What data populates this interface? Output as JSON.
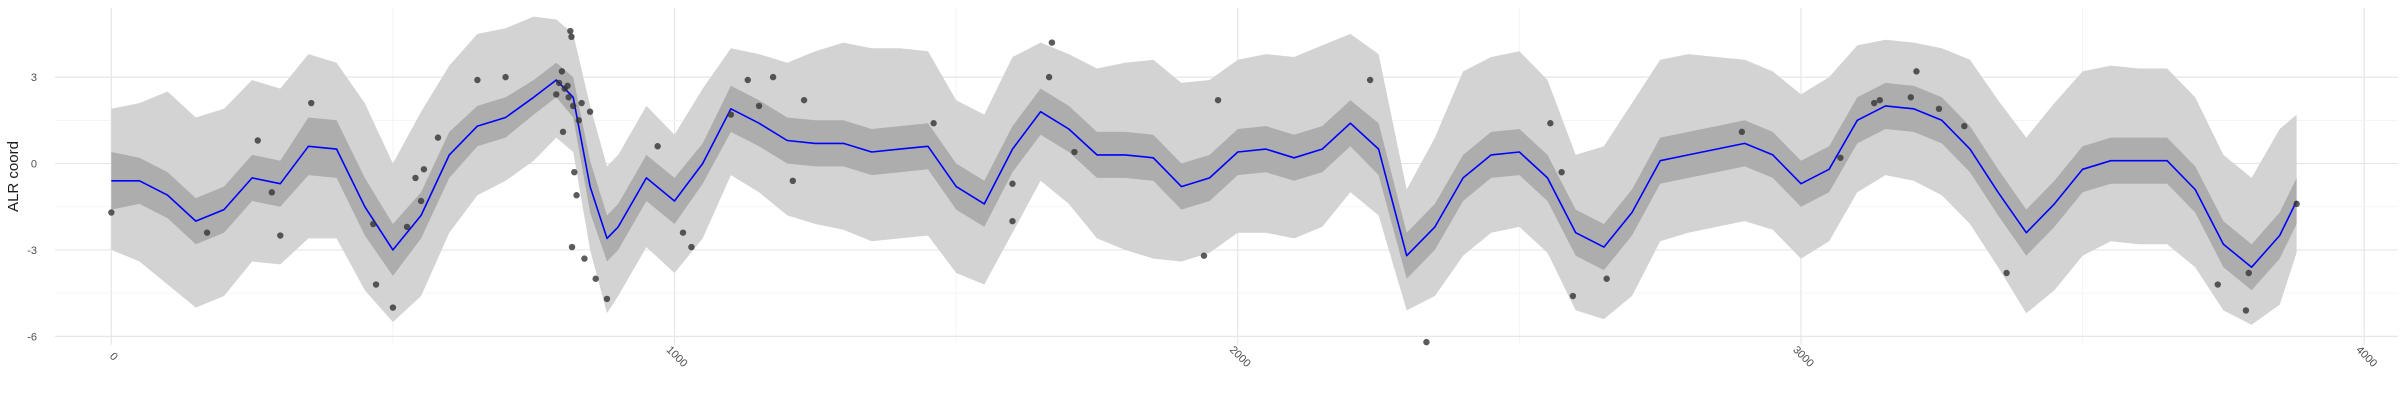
{
  "chart_data": {
    "type": "line",
    "title": "",
    "xlabel": "",
    "ylabel": "ALR coord",
    "xlim": [
      -100,
      4060
    ],
    "ylim": [
      -6.3,
      5.4
    ],
    "x_ticks": [
      0,
      1000,
      2000,
      3000,
      4000
    ],
    "x_tick_labels": [
      "0",
      "1000",
      "2000",
      "3000",
      "4000"
    ],
    "y_ticks": [
      -6,
      -3,
      0,
      3
    ],
    "y_tick_labels": [
      "-6",
      "-3",
      "0",
      "3"
    ],
    "grid": true,
    "colors": {
      "mean_line": "#0000ff",
      "inner_band": "#adadad",
      "outer_band": "#d3d3d3",
      "points": "#333333"
    },
    "series": [
      {
        "kind": "mean",
        "x": [
          0,
          50,
          100,
          150,
          200,
          250,
          300,
          350,
          400,
          450,
          500,
          550,
          600,
          650,
          700,
          750,
          790,
          820,
          850,
          880,
          900,
          950,
          1000,
          1050,
          1100,
          1150,
          1200,
          1250,
          1300,
          1350,
          1400,
          1450,
          1500,
          1550,
          1600,
          1650,
          1700,
          1750,
          1800,
          1850,
          1900,
          1950,
          2000,
          2050,
          2100,
          2150,
          2200,
          2250,
          2300,
          2350,
          2400,
          2450,
          2500,
          2550,
          2600,
          2650,
          2700,
          2750,
          2800,
          2850,
          2900,
          2950,
          3000,
          3050,
          3100,
          3150,
          3200,
          3250,
          3300,
          3350,
          3400,
          3450,
          3500,
          3550,
          3600,
          3650,
          3700,
          3750,
          3800,
          3850,
          3880
        ],
        "y": [
          -0.6,
          -0.6,
          -1.1,
          -2.0,
          -1.6,
          -0.5,
          -0.7,
          0.6,
          0.5,
          -1.5,
          -3.0,
          -1.8,
          0.3,
          1.3,
          1.6,
          2.3,
          2.9,
          2.3,
          -0.8,
          -2.6,
          -2.2,
          -0.5,
          -1.3,
          0.0,
          1.9,
          1.4,
          0.8,
          0.7,
          0.7,
          0.4,
          0.5,
          0.6,
          -0.8,
          -1.4,
          0.5,
          1.8,
          1.2,
          0.3,
          0.3,
          0.2,
          -0.8,
          -0.5,
          0.4,
          0.5,
          0.2,
          0.5,
          1.4,
          0.5,
          -3.2,
          -2.2,
          -0.5,
          0.3,
          0.4,
          -0.5,
          -2.4,
          -2.9,
          -1.7,
          0.1,
          0.3,
          0.5,
          0.7,
          0.3,
          -0.7,
          -0.2,
          1.5,
          2.0,
          1.9,
          1.5,
          0.5,
          -1.0,
          -2.4,
          -1.4,
          -0.2,
          0.1,
          0.1,
          0.1,
          -0.9,
          -2.8,
          -3.6,
          -2.5,
          -1.3
        ]
      },
      {
        "kind": "inner_band",
        "x": [
          0,
          50,
          100,
          150,
          200,
          250,
          300,
          350,
          400,
          450,
          500,
          550,
          600,
          650,
          700,
          750,
          790,
          820,
          850,
          880,
          900,
          950,
          1000,
          1050,
          1100,
          1150,
          1200,
          1250,
          1300,
          1350,
          1400,
          1450,
          1500,
          1550,
          1600,
          1650,
          1700,
          1750,
          1800,
          1850,
          1900,
          1950,
          2000,
          2050,
          2100,
          2150,
          2200,
          2250,
          2300,
          2350,
          2400,
          2450,
          2500,
          2550,
          2600,
          2650,
          2700,
          2750,
          2800,
          2850,
          2900,
          2950,
          3000,
          3050,
          3100,
          3150,
          3200,
          3250,
          3300,
          3350,
          3400,
          3450,
          3500,
          3550,
          3600,
          3650,
          3700,
          3750,
          3800,
          3850,
          3880
        ],
        "lower": [
          -1.6,
          -1.4,
          -1.9,
          -2.8,
          -2.4,
          -1.3,
          -1.5,
          -0.4,
          -0.5,
          -2.5,
          -3.9,
          -2.6,
          -0.5,
          0.6,
          0.9,
          1.7,
          2.3,
          1.6,
          -1.7,
          -3.4,
          -3.0,
          -1.3,
          -2.1,
          -0.7,
          1.1,
          0.6,
          0.0,
          -0.1,
          -0.1,
          -0.4,
          -0.3,
          -0.2,
          -1.6,
          -2.2,
          -0.3,
          1.0,
          0.4,
          -0.5,
          -0.5,
          -0.6,
          -1.6,
          -1.3,
          -0.4,
          -0.3,
          -0.6,
          -0.3,
          0.6,
          -0.4,
          -4.0,
          -3.0,
          -1.3,
          -0.5,
          -0.4,
          -1.3,
          -3.2,
          -3.7,
          -2.5,
          -0.7,
          -0.5,
          -0.3,
          -0.1,
          -0.5,
          -1.5,
          -1.0,
          0.7,
          1.2,
          1.1,
          0.7,
          -0.3,
          -1.8,
          -3.2,
          -2.2,
          -1.0,
          -0.7,
          -0.7,
          -0.7,
          -1.7,
          -3.6,
          -4.4,
          -3.3,
          -2.1
        ],
        "upper": [
          0.4,
          0.2,
          -0.3,
          -1.2,
          -0.8,
          0.3,
          0.1,
          1.6,
          1.5,
          -0.5,
          -2.1,
          -1.0,
          1.1,
          2.0,
          2.3,
          2.9,
          3.5,
          3.0,
          0.1,
          -1.8,
          -1.4,
          0.3,
          -0.5,
          0.7,
          2.7,
          2.2,
          1.6,
          1.5,
          1.5,
          1.2,
          1.3,
          1.4,
          0.0,
          -0.6,
          1.3,
          2.6,
          2.0,
          1.1,
          1.1,
          1.0,
          0.0,
          0.3,
          1.2,
          1.3,
          1.0,
          1.3,
          2.2,
          1.4,
          -2.4,
          -1.4,
          0.3,
          1.1,
          1.2,
          0.3,
          -1.6,
          -2.1,
          -0.9,
          0.9,
          1.1,
          1.3,
          1.5,
          1.1,
          0.1,
          0.6,
          2.3,
          2.8,
          2.7,
          2.3,
          1.3,
          -0.2,
          -1.6,
          -0.6,
          0.6,
          0.9,
          0.9,
          0.9,
          -0.1,
          -2.0,
          -2.8,
          -1.7,
          -0.5
        ]
      },
      {
        "kind": "outer_band",
        "x": [
          0,
          50,
          100,
          150,
          200,
          250,
          300,
          350,
          400,
          450,
          500,
          550,
          600,
          650,
          700,
          750,
          790,
          820,
          850,
          880,
          900,
          950,
          1000,
          1050,
          1100,
          1150,
          1200,
          1250,
          1300,
          1350,
          1400,
          1450,
          1500,
          1550,
          1600,
          1650,
          1700,
          1750,
          1800,
          1850,
          1900,
          1950,
          2000,
          2050,
          2100,
          2150,
          2200,
          2250,
          2300,
          2350,
          2400,
          2450,
          2500,
          2550,
          2600,
          2650,
          2700,
          2750,
          2800,
          2850,
          2900,
          2950,
          3000,
          3050,
          3100,
          3150,
          3200,
          3250,
          3300,
          3350,
          3400,
          3450,
          3500,
          3550,
          3600,
          3650,
          3700,
          3750,
          3800,
          3850,
          3880
        ],
        "lower": [
          -3.0,
          -3.4,
          -4.2,
          -5.0,
          -4.6,
          -3.4,
          -3.5,
          -2.6,
          -2.6,
          -4.4,
          -5.5,
          -4.6,
          -2.4,
          -1.1,
          -0.6,
          0.1,
          0.9,
          0.4,
          -3.0,
          -5.2,
          -4.6,
          -2.9,
          -3.8,
          -2.6,
          -0.4,
          -1.0,
          -1.8,
          -2.1,
          -2.3,
          -2.7,
          -2.6,
          -2.5,
          -3.8,
          -4.2,
          -2.4,
          -0.6,
          -1.4,
          -2.6,
          -3.0,
          -3.3,
          -3.4,
          -3.1,
          -2.4,
          -2.4,
          -2.6,
          -2.2,
          -1.0,
          -1.8,
          -5.1,
          -4.6,
          -3.2,
          -2.4,
          -2.2,
          -3.1,
          -5.1,
          -5.4,
          -4.6,
          -2.7,
          -2.4,
          -2.2,
          -2.0,
          -2.3,
          -3.3,
          -2.7,
          -1.0,
          -0.4,
          -0.6,
          -1.1,
          -2.1,
          -3.6,
          -5.2,
          -4.4,
          -3.2,
          -2.7,
          -2.8,
          -2.8,
          -3.6,
          -5.1,
          -5.6,
          -4.9,
          -3.1
        ],
        "upper": [
          1.9,
          2.1,
          2.5,
          1.6,
          1.9,
          2.9,
          2.6,
          3.8,
          3.5,
          2.1,
          0.0,
          1.8,
          3.4,
          4.5,
          4.7,
          5.1,
          5.0,
          4.5,
          2.0,
          -0.1,
          0.3,
          2.0,
          1.0,
          2.6,
          4.0,
          3.8,
          3.5,
          3.9,
          4.2,
          4.0,
          4.0,
          3.9,
          2.2,
          1.7,
          3.7,
          4.2,
          3.8,
          3.3,
          3.5,
          3.6,
          2.8,
          2.9,
          3.6,
          3.8,
          3.7,
          4.1,
          4.5,
          3.8,
          -0.9,
          0.9,
          3.2,
          3.7,
          3.9,
          2.9,
          0.3,
          0.6,
          2.1,
          3.6,
          3.8,
          3.7,
          3.6,
          3.2,
          2.4,
          3.0,
          4.1,
          4.3,
          4.2,
          4.0,
          3.6,
          2.2,
          0.9,
          2.1,
          3.2,
          3.4,
          3.3,
          3.3,
          2.3,
          0.3,
          -0.5,
          1.2,
          1.7
        ]
      }
    ],
    "points": [
      {
        "x": 0,
        "y": -1.7
      },
      {
        "x": 170,
        "y": -2.4
      },
      {
        "x": 260,
        "y": 0.8
      },
      {
        "x": 285,
        "y": -1.0
      },
      {
        "x": 300,
        "y": -2.5
      },
      {
        "x": 355,
        "y": 2.1
      },
      {
        "x": 465,
        "y": -2.1
      },
      {
        "x": 470,
        "y": -4.2
      },
      {
        "x": 500,
        "y": -5.0
      },
      {
        "x": 525,
        "y": -2.2
      },
      {
        "x": 540,
        "y": -0.5
      },
      {
        "x": 550,
        "y": -1.3
      },
      {
        "x": 555,
        "y": -0.2
      },
      {
        "x": 580,
        "y": 0.9
      },
      {
        "x": 650,
        "y": 2.9
      },
      {
        "x": 700,
        "y": 3.0
      },
      {
        "x": 790,
        "y": 2.4
      },
      {
        "x": 795,
        "y": 2.8
      },
      {
        "x": 800,
        "y": 3.2
      },
      {
        "x": 802,
        "y": 1.1
      },
      {
        "x": 805,
        "y": 2.6
      },
      {
        "x": 810,
        "y": 2.7
      },
      {
        "x": 812,
        "y": 2.3
      },
      {
        "x": 815,
        "y": 4.6
      },
      {
        "x": 817,
        "y": 4.4
      },
      {
        "x": 818,
        "y": -2.9
      },
      {
        "x": 820,
        "y": 2.0
      },
      {
        "x": 822,
        "y": -0.3
      },
      {
        "x": 826,
        "y": -1.1
      },
      {
        "x": 830,
        "y": 1.5
      },
      {
        "x": 835,
        "y": 2.1
      },
      {
        "x": 840,
        "y": -3.3
      },
      {
        "x": 850,
        "y": 1.8
      },
      {
        "x": 860,
        "y": -4.0
      },
      {
        "x": 880,
        "y": -4.7
      },
      {
        "x": 970,
        "y": 0.6
      },
      {
        "x": 1015,
        "y": -2.4
      },
      {
        "x": 1030,
        "y": -2.9
      },
      {
        "x": 1100,
        "y": 1.7
      },
      {
        "x": 1130,
        "y": 2.9
      },
      {
        "x": 1150,
        "y": 2.0
      },
      {
        "x": 1175,
        "y": 3.0
      },
      {
        "x": 1210,
        "y": -0.6
      },
      {
        "x": 1230,
        "y": 2.2
      },
      {
        "x": 1460,
        "y": 1.4
      },
      {
        "x": 1600,
        "y": -2.0
      },
      {
        "x": 1600,
        "y": -0.7
      },
      {
        "x": 1665,
        "y": 3.0
      },
      {
        "x": 1670,
        "y": 4.2
      },
      {
        "x": 1710,
        "y": 0.4
      },
      {
        "x": 1940,
        "y": -3.2
      },
      {
        "x": 1965,
        "y": 2.2
      },
      {
        "x": 2235,
        "y": 2.9
      },
      {
        "x": 2335,
        "y": -6.2
      },
      {
        "x": 2555,
        "y": 1.4
      },
      {
        "x": 2575,
        "y": -0.3
      },
      {
        "x": 2595,
        "y": -4.6
      },
      {
        "x": 2655,
        "y": -4.0
      },
      {
        "x": 2895,
        "y": 1.1
      },
      {
        "x": 3070,
        "y": 0.2
      },
      {
        "x": 3130,
        "y": 2.1
      },
      {
        "x": 3140,
        "y": 2.2
      },
      {
        "x": 3195,
        "y": 2.3
      },
      {
        "x": 3205,
        "y": 3.2
      },
      {
        "x": 3245,
        "y": 1.9
      },
      {
        "x": 3290,
        "y": 1.3
      },
      {
        "x": 3365,
        "y": -3.8
      },
      {
        "x": 3740,
        "y": -4.2
      },
      {
        "x": 3790,
        "y": -5.1
      },
      {
        "x": 3795,
        "y": -3.8
      },
      {
        "x": 3880,
        "y": -1.4
      }
    ]
  }
}
